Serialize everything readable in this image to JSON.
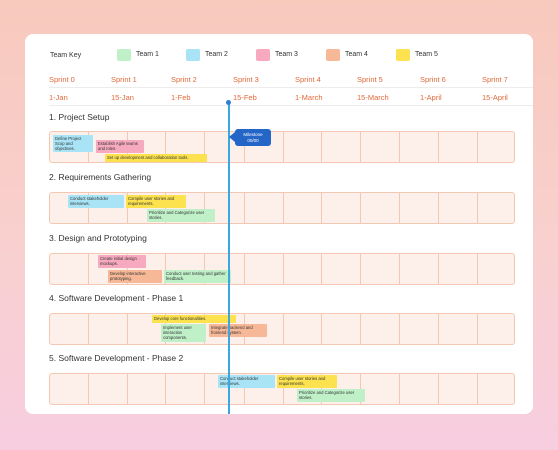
{
  "team_key": {
    "label": "Team Key",
    "teams": [
      {
        "label": "Team 1",
        "color": "#bff0c8"
      },
      {
        "label": "Team 2",
        "color": "#a8e4f6"
      },
      {
        "label": "Team 3",
        "color": "#f7a9c0"
      },
      {
        "label": "Team 4",
        "color": "#f7b898"
      },
      {
        "label": "Team 5",
        "color": "#fbe24e"
      }
    ]
  },
  "timeline": {
    "sprints": [
      "Sprint 0",
      "Sprint 1",
      "Sprint 2",
      "Sprint 3",
      "Sprint 4",
      "Sprint 5",
      "Sprint 6",
      "Sprint 7"
    ],
    "dates": [
      "1-Jan",
      "15-Jan",
      "1-Feb",
      "15-Feb",
      "1-March",
      "15-March",
      "1-April",
      "15-April"
    ]
  },
  "milestone": {
    "label": "Milestone",
    "value": "00/00"
  },
  "sections": [
    {
      "title": "1. Project Setup",
      "tasks": [
        {
          "text": "Define Project Scop and objectives.",
          "team": 2
        },
        {
          "text": "Establish Agile teams and roles.",
          "team": 3
        },
        {
          "text": "Set up development and collaboration tools.",
          "team": 5
        }
      ]
    },
    {
      "title": "2. Requirements Gathering",
      "tasks": [
        {
          "text": "Conduct stakeholder interviews.",
          "team": 2
        },
        {
          "text": "Compile user stories and requirements.",
          "team": 5
        },
        {
          "text": "Prioritize and Categorize user stories.",
          "team": 1
        }
      ]
    },
    {
      "title": "3. Design and Prototyping",
      "tasks": [
        {
          "text": "Create initial design mockups.",
          "team": 3
        },
        {
          "text": "Develop interactive prototyping.",
          "team": 4
        },
        {
          "text": "Conduct user testing and gather feedback.",
          "team": 1
        }
      ]
    },
    {
      "title": "4. Software Development - Phase 1",
      "tasks": [
        {
          "text": "Develop core functionalities.",
          "team": 5
        },
        {
          "text": "Implement user interaction components.",
          "team": 1
        },
        {
          "text": "Integrate backend and frontend system.",
          "team": 4
        }
      ]
    },
    {
      "title": "5. Software Development - Phase 2",
      "tasks": [
        {
          "text": "Conduct stakeholder interviews.",
          "team": 2
        },
        {
          "text": "Compile user stories and requirements.",
          "team": 5
        },
        {
          "text": "Prioritize and Categorize user stories.",
          "team": 1
        }
      ]
    }
  ]
}
